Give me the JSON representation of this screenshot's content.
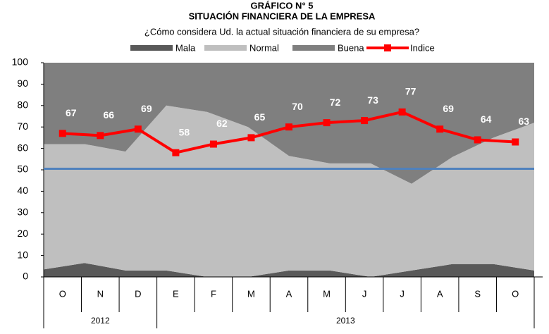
{
  "chart_data": {
    "type": "stacked_area_line",
    "title": "GRÁFICO N° 5",
    "subtitle": "SITUACIÓN FINANCIERA DE LA EMPRESA",
    "question": "¿Cómo considera Ud. la actual situación financiera de su empresa?",
    "categories": [
      "O",
      "N",
      "D",
      "E",
      "F",
      "M",
      "A",
      "M",
      "J",
      "J",
      "A",
      "S",
      "O"
    ],
    "groups": [
      {
        "label": "2012",
        "span": 3
      },
      {
        "label": "2013",
        "span": 10
      }
    ],
    "series": [
      {
        "name": "Mala",
        "color": "#595959",
        "kind": "area",
        "values": [
          3.5,
          6.5,
          3,
          3,
          0,
          0,
          3,
          3,
          0,
          3,
          6,
          6,
          3
        ]
      },
      {
        "name": "Normal",
        "color": "#bfbfbf",
        "kind": "area",
        "values": [
          58.5,
          55.5,
          55.5,
          77,
          77,
          70,
          53.5,
          50,
          53,
          40.5,
          50,
          59,
          69
        ]
      },
      {
        "name": "Buena",
        "color": "#7f7f7f",
        "kind": "area",
        "values": [
          38,
          38,
          41.5,
          20,
          23,
          30,
          43.5,
          47,
          47,
          56.5,
          44,
          35,
          28
        ]
      },
      {
        "name": "Indice",
        "color": "#ff0000",
        "kind": "line",
        "values": [
          67,
          66,
          69,
          58,
          62,
          65,
          70,
          72,
          73,
          77,
          69,
          64,
          63
        ]
      }
    ],
    "reference_line": {
      "value": 50.5,
      "color": "#4f81bd"
    },
    "ylim": [
      0,
      100
    ],
    "yticks": [
      0,
      10,
      20,
      30,
      40,
      50,
      60,
      70,
      80,
      90,
      100
    ]
  }
}
